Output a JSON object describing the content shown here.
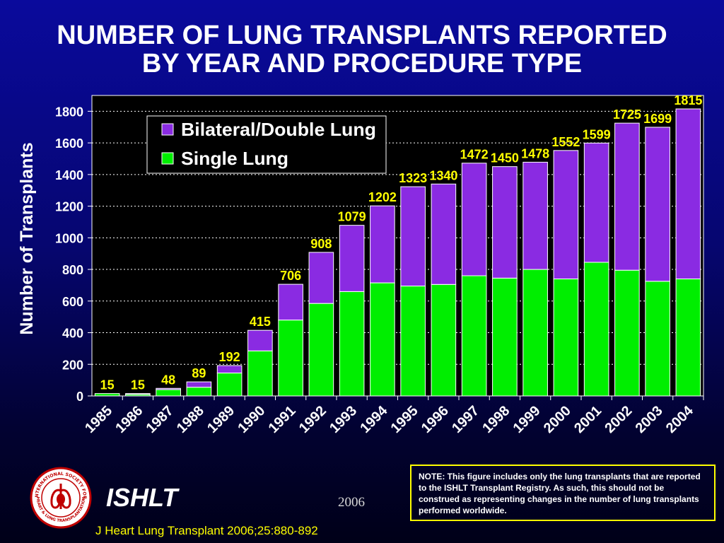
{
  "title_line1": "NUMBER OF LUNG TRANSPLANTS REPORTED",
  "title_line2": "BY YEAR AND PROCEDURE TYPE",
  "note": "NOTE: This figure includes only the lung transplants that are reported to the ISHLT Transplant Registry.  As such, this should not be construed as representing changes in the number of lung transplants performed worldwide.",
  "footer": {
    "org": "ISHLT",
    "year": "2006",
    "citation": "J Heart Lung Transplant 2006;25:880-892",
    "logo_text_top": "INTERNATIONAL SOCIETY FOR",
    "logo_text_bottom": "HEART & LUNG TRANSPLANTATION"
  },
  "colors": {
    "single": "#00ee00",
    "bilateral": "#8a2be2",
    "label": "#ffff00",
    "plot_bg": "#000000",
    "note_border": "#ffff00"
  },
  "chart_data": {
    "type": "bar",
    "stacked": true,
    "ylabel": "Number of Transplants",
    "xlabel": "",
    "ylim": [
      0,
      1800
    ],
    "yticks": [
      0,
      200,
      400,
      600,
      800,
      1000,
      1200,
      1400,
      1600,
      1800
    ],
    "grid": "horizontal dotted",
    "legend_position": "top-left",
    "categories": [
      "1985",
      "1986",
      "1987",
      "1988",
      "1989",
      "1990",
      "1991",
      "1992",
      "1993",
      "1994",
      "1995",
      "1996",
      "1997",
      "1998",
      "1999",
      "2000",
      "2001",
      "2002",
      "2003",
      "2004"
    ],
    "series": [
      {
        "name": "Single Lung",
        "values": [
          15,
          10,
          40,
          55,
          145,
          285,
          480,
          585,
          660,
          715,
          695,
          705,
          760,
          745,
          800,
          740,
          845,
          795,
          725,
          740
        ]
      },
      {
        "name": "Bilateral/Double Lung",
        "values": [
          0,
          5,
          8,
          34,
          47,
          130,
          226,
          323,
          419,
          487,
          628,
          635,
          712,
          705,
          678,
          812,
          754,
          930,
          974,
          1075
        ]
      }
    ],
    "totals": [
      15,
      15,
      48,
      89,
      192,
      415,
      706,
      908,
      1079,
      1202,
      1323,
      1340,
      1472,
      1450,
      1478,
      1552,
      1599,
      1725,
      1699,
      1815
    ],
    "legend_order": [
      "Bilateral/Double Lung",
      "Single Lung"
    ]
  }
}
